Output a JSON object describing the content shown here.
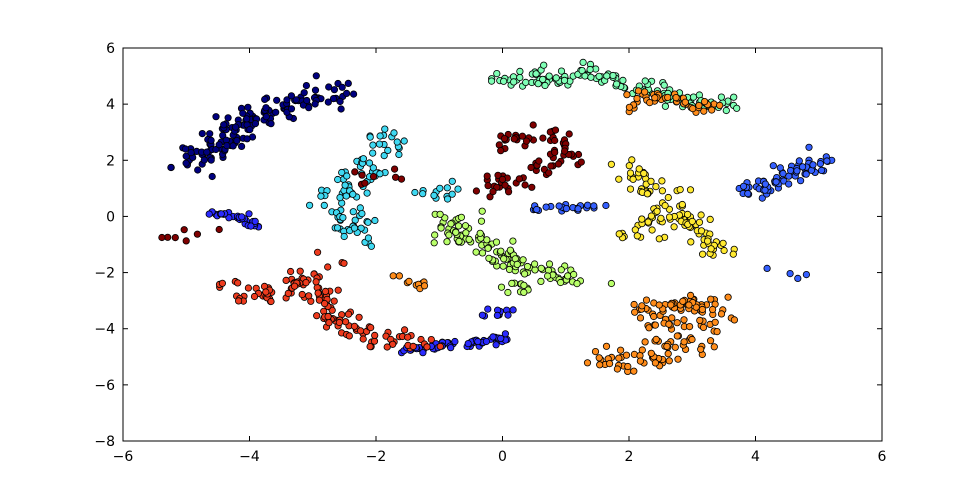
{
  "chart_data": {
    "type": "scatter",
    "title": "",
    "xlabel": "",
    "ylabel": "",
    "xlim": [
      -6,
      6
    ],
    "ylim": [
      -8,
      6
    ],
    "xticks": [
      -6,
      -4,
      -2,
      0,
      2,
      4,
      6
    ],
    "yticks": [
      -8,
      -6,
      -4,
      -2,
      0,
      2,
      4,
      6
    ],
    "xtick_labels": [
      "−6",
      "−4",
      "−2",
      "0",
      "2",
      "4",
      "6"
    ],
    "ytick_labels": [
      "−8",
      "−6",
      "−4",
      "−2",
      "0",
      "2",
      "4",
      "6"
    ],
    "grid": false,
    "legend": "none",
    "clusters": [
      {
        "color": "#00007f",
        "segments": [
          [
            [
              -4.95,
              1.8
            ],
            [
              -4.5,
              2.6
            ],
            [
              -3.9,
              3.6
            ],
            [
              -2.9,
              4.3
            ],
            [
              -2.5,
              4.6
            ]
          ]
        ],
        "spread": 0.22,
        "count": 160
      },
      {
        "color": "#2b2bff",
        "segments": [
          [
            [
              -4.65,
              0.1
            ],
            [
              -4.2,
              0.0
            ],
            [
              -3.9,
              -0.35
            ]
          ]
        ],
        "spread": 0.06,
        "count": 30
      },
      {
        "color": "#2b2bff",
        "segments": [
          [
            [
              -1.55,
              -4.75
            ],
            [
              -1.0,
              -4.6
            ],
            [
              -0.4,
              -4.5
            ],
            [
              0.1,
              -4.35
            ]
          ],
          [
            [
              -0.2,
              -3.5
            ],
            [
              0.1,
              -3.4
            ]
          ]
        ],
        "spread": 0.08,
        "count": 70
      },
      {
        "color": "#3560ff",
        "segments": [
          [
            [
              0.5,
              0.3
            ],
            [
              1.2,
              0.3
            ],
            [
              1.7,
              0.35
            ]
          ]
        ],
        "spread": 0.07,
        "count": 25
      },
      {
        "color": "#3560ff",
        "segments": [
          [
            [
              3.85,
              0.8
            ],
            [
              4.5,
              1.4
            ],
            [
              5.05,
              2.1
            ]
          ],
          [
            [
              4.5,
              -1.95
            ],
            [
              4.6,
              -2.0
            ]
          ]
        ],
        "spread": 0.16,
        "count": 75
      },
      {
        "color": "#3fd9f2",
        "segments": [
          [
            [
              -2.6,
              0.6
            ],
            [
              -2.2,
              1.5
            ],
            [
              -1.85,
              2.9
            ]
          ],
          [
            [
              -2.6,
              0.5
            ],
            [
              -2.1,
              -0.9
            ]
          ],
          [
            [
              -1.3,
              1.0
            ],
            [
              -0.8,
              0.9
            ]
          ]
        ],
        "spread": 0.2,
        "count": 110
      },
      {
        "color": "#7fffb5",
        "segments": [
          [
            [
              -0.1,
              4.9
            ],
            [
              0.8,
              4.9
            ],
            [
              1.4,
              5.1
            ],
            [
              2.3,
              4.5
            ],
            [
              3.0,
              4.0
            ],
            [
              3.55,
              3.85
            ]
          ]
        ],
        "spread": 0.16,
        "count": 140
      },
      {
        "color": "#b9ff6a",
        "segments": [
          [
            [
              -0.85,
              -0.6
            ],
            [
              -0.2,
              -1.0
            ],
            [
              0.3,
              -1.8
            ],
            [
              1.0,
              -2.2
            ],
            [
              1.4,
              -2.3
            ]
          ],
          [
            [
              -0.7,
              0.0
            ],
            [
              -0.75,
              -0.5
            ]
          ],
          [
            [
              0.1,
              -2.5
            ],
            [
              0.4,
              -2.6
            ]
          ]
        ],
        "spread": 0.16,
        "count": 130
      },
      {
        "color": "#ffe930",
        "segments": [
          [
            [
              2.05,
              1.8
            ],
            [
              2.3,
              1.0
            ],
            [
              2.7,
              0.1
            ],
            [
              3.2,
              -0.8
            ],
            [
              3.6,
              -1.4
            ]
          ],
          [
            [
              2.2,
              0.0
            ],
            [
              2.2,
              -0.7
            ]
          ]
        ],
        "spread": 0.2,
        "count": 115
      },
      {
        "color": "#ff8c1a",
        "segments": [
          [
            [
              2.0,
              3.8
            ],
            [
              2.2,
              4.4
            ],
            [
              3.0,
              4.0
            ],
            [
              3.4,
              3.85
            ]
          ]
        ],
        "spread": 0.1,
        "count": 45
      },
      {
        "color": "#ff8c1a",
        "segments": [
          [
            [
              1.9,
              -5.45
            ],
            [
              2.5,
              -5.0
            ],
            [
              2.7,
              -4.2
            ],
            [
              2.3,
              -3.1
            ]
          ],
          [
            [
              2.5,
              -3.3
            ],
            [
              3.1,
              -3.0
            ],
            [
              3.3,
              -3.7
            ],
            [
              3.0,
              -4.7
            ]
          ],
          [
            [
              1.6,
              -4.8
            ],
            [
              1.9,
              -5.3
            ]
          ]
        ],
        "spread": 0.18,
        "count": 140
      },
      {
        "color": "#ff8c1a",
        "segments": [
          [
            [
              -1.7,
              -2.1
            ],
            [
              -1.2,
              -2.5
            ]
          ]
        ],
        "spread": 0.05,
        "count": 10
      },
      {
        "color": "#ee3b1d",
        "segments": [
          [
            [
              -3.85,
              -2.85
            ],
            [
              -3.4,
              -2.5
            ],
            [
              -3.0,
              -2.1
            ],
            [
              -2.9,
              -2.5
            ],
            [
              -2.7,
              -3.7
            ],
            [
              -2.1,
              -4.3
            ],
            [
              -1.0,
              -4.5
            ]
          ],
          [
            [
              -4.3,
              -2.6
            ],
            [
              -3.9,
              -2.95
            ]
          ],
          [
            [
              -2.75,
              -1.7
            ],
            [
              -2.65,
              -1.6
            ]
          ]
        ],
        "spread": 0.16,
        "count": 140
      },
      {
        "color": "#7f0000",
        "segments": [
          [
            [
              -0.1,
              2.5
            ],
            [
              0.3,
              3.0
            ],
            [
              0.8,
              2.6
            ],
            [
              0.9,
              2.0
            ],
            [
              0.4,
              1.4
            ],
            [
              -0.2,
              1.2
            ]
          ],
          [
            [
              -0.2,
              0.8
            ],
            [
              0.2,
              1.1
            ]
          ],
          [
            [
              -5.05,
              -0.75
            ],
            [
              -4.8,
              -0.55
            ]
          ],
          [
            [
              -2.15,
              1.3
            ],
            [
              -1.9,
              1.6
            ]
          ]
        ],
        "spread": 0.2,
        "count": 95
      }
    ]
  }
}
